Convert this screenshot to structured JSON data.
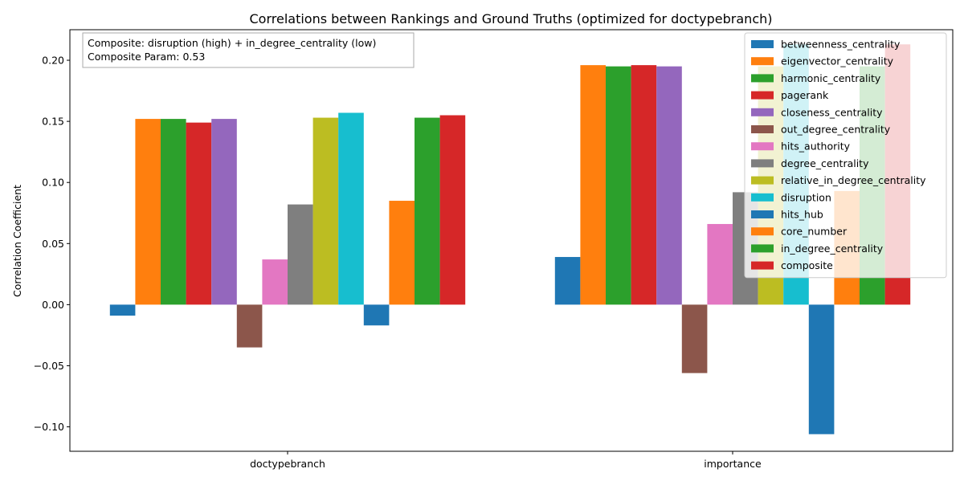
{
  "chart_data": {
    "type": "bar",
    "title": "Correlations between Rankings and Ground Truths (optimized for doctypebranch)",
    "xlabel": "",
    "ylabel": "Correlation Coefficient",
    "ylim": [
      -0.12,
      0.225
    ],
    "yticks": [
      -0.1,
      -0.05,
      0.0,
      0.05,
      0.1,
      0.15,
      0.2
    ],
    "ytick_labels": [
      "−0.10",
      "−0.05",
      "0.00",
      "0.05",
      "0.10",
      "0.15",
      "0.20"
    ],
    "categories": [
      "doctypebranch",
      "importance"
    ],
    "grid": false,
    "legend_position": "upper-right",
    "annotation_lines": [
      "Composite: disruption (high) + in_degree_centrality (low)",
      "Composite Param: 0.53"
    ],
    "series": [
      {
        "name": "betweenness_centrality",
        "color": "#1f77b4",
        "values": [
          -0.009,
          0.039
        ]
      },
      {
        "name": "eigenvector_centrality",
        "color": "#ff7f0e",
        "values": [
          0.152,
          0.196
        ]
      },
      {
        "name": "harmonic_centrality",
        "color": "#2ca02c",
        "values": [
          0.152,
          0.195
        ]
      },
      {
        "name": "pagerank",
        "color": "#d62728",
        "values": [
          0.149,
          0.196
        ]
      },
      {
        "name": "closeness_centrality",
        "color": "#9467bd",
        "values": [
          0.152,
          0.195
        ]
      },
      {
        "name": "out_degree_centrality",
        "color": "#8c564b",
        "values": [
          -0.035,
          -0.056
        ]
      },
      {
        "name": "hits_authority",
        "color": "#e377c2",
        "values": [
          0.037,
          0.066
        ]
      },
      {
        "name": "degree_centrality",
        "color": "#7f7f7f",
        "values": [
          0.082,
          0.092
        ]
      },
      {
        "name": "relative_in_degree_centrality",
        "color": "#bcbd22",
        "values": [
          0.153,
          0.195
        ]
      },
      {
        "name": "disruption",
        "color": "#17becf",
        "values": [
          0.157,
          0.213
        ]
      },
      {
        "name": "hits_hub",
        "color": "#1f77b4",
        "values": [
          -0.017,
          -0.106
        ]
      },
      {
        "name": "core_number",
        "color": "#ff7f0e",
        "values": [
          0.085,
          0.093
        ]
      },
      {
        "name": "in_degree_centrality",
        "color": "#2ca02c",
        "values": [
          0.153,
          0.195
        ]
      },
      {
        "name": "composite",
        "color": "#d62728",
        "values": [
          0.155,
          0.213
        ]
      }
    ]
  }
}
